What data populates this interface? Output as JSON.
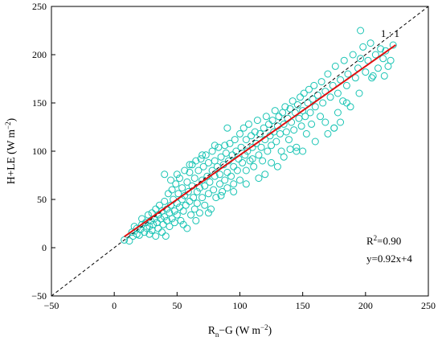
{
  "chart_data": {
    "type": "scatter",
    "title": "",
    "xlabel": {
      "base": "R",
      "sub": "n",
      "rest": "−G (W m",
      "sup": "−2",
      "close": ")"
    },
    "ylabel": {
      "main": "H+LE (W m",
      "sup": "−2",
      "close": ")"
    },
    "xlim": [
      -50,
      250
    ],
    "ylim": [
      -50,
      250
    ],
    "xticks": [
      -50,
      0,
      50,
      100,
      150,
      200,
      250
    ],
    "yticks": [
      -50,
      0,
      50,
      100,
      150,
      200,
      250
    ],
    "grid": false,
    "marker_color": "#19c4b4",
    "one_to_one": {
      "label": "1 : 1",
      "color": "#000000"
    },
    "fit_line": {
      "slope": 0.92,
      "intercept": 4,
      "x_range": [
        8,
        224
      ],
      "color": "#e01010"
    },
    "annotations": {
      "r2_base": "R",
      "r2_sup": "2",
      "r2_value": "=0.90",
      "equation": "y=0.92x+4"
    },
    "series": [
      {
        "marker": "open-circle",
        "points": [
          [
            8,
            8
          ],
          [
            12,
            7
          ],
          [
            14,
            16
          ],
          [
            15,
            12
          ],
          [
            16,
            22
          ],
          [
            18,
            14
          ],
          [
            18,
            20
          ],
          [
            20,
            13
          ],
          [
            21,
            19
          ],
          [
            22,
            24
          ],
          [
            22,
            30
          ],
          [
            24,
            16
          ],
          [
            25,
            26
          ],
          [
            26,
            20
          ],
          [
            27,
            34
          ],
          [
            28,
            22
          ],
          [
            28,
            14
          ],
          [
            29,
            28
          ],
          [
            30,
            36
          ],
          [
            30,
            18
          ],
          [
            31,
            24
          ],
          [
            32,
            30
          ],
          [
            33,
            40
          ],
          [
            33,
            12
          ],
          [
            34,
            26
          ],
          [
            35,
            34
          ],
          [
            35,
            20
          ],
          [
            36,
            44
          ],
          [
            37,
            30
          ],
          [
            38,
            16
          ],
          [
            38,
            38
          ],
          [
            39,
            24
          ],
          [
            40,
            48
          ],
          [
            40,
            32
          ],
          [
            41,
            12
          ],
          [
            42,
            40
          ],
          [
            42,
            28
          ],
          [
            43,
            56
          ],
          [
            44,
            36
          ],
          [
            44,
            22
          ],
          [
            45,
            44
          ],
          [
            46,
            30
          ],
          [
            46,
            60
          ],
          [
            47,
            50
          ],
          [
            48,
            38
          ],
          [
            48,
            26
          ],
          [
            49,
            66
          ],
          [
            50,
            46
          ],
          [
            50,
            34
          ],
          [
            51,
            56
          ],
          [
            52,
            42
          ],
          [
            52,
            72
          ],
          [
            53,
            28
          ],
          [
            54,
            50
          ],
          [
            54,
            62
          ],
          [
            55,
            38
          ],
          [
            56,
            80
          ],
          [
            56,
            54
          ],
          [
            57,
            44
          ],
          [
            58,
            68
          ],
          [
            58,
            20
          ],
          [
            59,
            58
          ],
          [
            60,
            48
          ],
          [
            60,
            78
          ],
          [
            61,
            34
          ],
          [
            62,
            64
          ],
          [
            62,
            86
          ],
          [
            63,
            52
          ],
          [
            64,
            40
          ],
          [
            64,
            72
          ],
          [
            65,
            90
          ],
          [
            66,
            58
          ],
          [
            66,
            46
          ],
          [
            67,
            80
          ],
          [
            68,
            62
          ],
          [
            68,
            36
          ],
          [
            69,
            92
          ],
          [
            70,
            70
          ],
          [
            70,
            52
          ],
          [
            71,
            84
          ],
          [
            72,
            64
          ],
          [
            72,
            44
          ],
          [
            73,
            96
          ],
          [
            74,
            74
          ],
          [
            75,
            56
          ],
          [
            75,
            88
          ],
          [
            76,
            68
          ],
          [
            77,
            40
          ],
          [
            78,
            80
          ],
          [
            78,
            100
          ],
          [
            79,
            60
          ],
          [
            80,
            74
          ],
          [
            80,
            90
          ],
          [
            81,
            52
          ],
          [
            82,
            84
          ],
          [
            83,
            104
          ],
          [
            84,
            66
          ],
          [
            84,
            76
          ],
          [
            85,
            94
          ],
          [
            86,
            58
          ],
          [
            87,
            86
          ],
          [
            88,
            70
          ],
          [
            88,
            106
          ],
          [
            89,
            98
          ],
          [
            90,
            78
          ],
          [
            90,
            62
          ],
          [
            91,
            90
          ],
          [
            92,
            108
          ],
          [
            93,
            74
          ],
          [
            94,
            96
          ],
          [
            95,
            84
          ],
          [
            95,
            66
          ],
          [
            96,
            112
          ],
          [
            97,
            100
          ],
          [
            98,
            80
          ],
          [
            99,
            92
          ],
          [
            100,
            118
          ],
          [
            100,
            70
          ],
          [
            101,
            104
          ],
          [
            102,
            88
          ],
          [
            103,
            124
          ],
          [
            104,
            96
          ],
          [
            105,
            80
          ],
          [
            105,
            112
          ],
          [
            106,
            100
          ],
          [
            107,
            128
          ],
          [
            108,
            90
          ],
          [
            109,
            116
          ],
          [
            110,
            104
          ],
          [
            111,
            84
          ],
          [
            112,
            120
          ],
          [
            113,
            108
          ],
          [
            114,
            132
          ],
          [
            115,
            96
          ],
          [
            116,
            118
          ],
          [
            117,
            104
          ],
          [
            118,
            90
          ],
          [
            119,
            124
          ],
          [
            120,
            112
          ],
          [
            121,
            136
          ],
          [
            122,
            100
          ],
          [
            123,
            128
          ],
          [
            124,
            116
          ],
          [
            125,
            106
          ],
          [
            126,
            132
          ],
          [
            127,
            120
          ],
          [
            128,
            142
          ],
          [
            129,
            110
          ],
          [
            130,
            126
          ],
          [
            131,
            136
          ],
          [
            132,
            118
          ],
          [
            133,
            100
          ],
          [
            134,
            140
          ],
          [
            135,
            128
          ],
          [
            136,
            146
          ],
          [
            137,
            120
          ],
          [
            138,
            134
          ],
          [
            139,
            112
          ],
          [
            140,
            144
          ],
          [
            141,
            130
          ],
          [
            142,
            152
          ],
          [
            143,
            122
          ],
          [
            144,
            140
          ],
          [
            145,
            104
          ],
          [
            146,
            148
          ],
          [
            147,
            134
          ],
          [
            148,
            156
          ],
          [
            149,
            126
          ],
          [
            150,
            142
          ],
          [
            151,
            160
          ],
          [
            152,
            136
          ],
          [
            153,
            118
          ],
          [
            154,
            150
          ],
          [
            155,
            164
          ],
          [
            156,
            140
          ],
          [
            157,
            128
          ],
          [
            158,
            154
          ],
          [
            159,
            168
          ],
          [
            160,
            146
          ],
          [
            162,
            158
          ],
          [
            164,
            136
          ],
          [
            165,
            172
          ],
          [
            166,
            150
          ],
          [
            168,
            162
          ],
          [
            170,
            180
          ],
          [
            172,
            156
          ],
          [
            174,
            168
          ],
          [
            175,
            124
          ],
          [
            176,
            188
          ],
          [
            178,
            160
          ],
          [
            180,
            174
          ],
          [
            182,
            152
          ],
          [
            183,
            194
          ],
          [
            185,
            168
          ],
          [
            186,
            180
          ],
          [
            188,
            146
          ],
          [
            190,
            200
          ],
          [
            192,
            176
          ],
          [
            194,
            186
          ],
          [
            196,
            196
          ],
          [
            198,
            208
          ],
          [
            200,
            182
          ],
          [
            202,
            194
          ],
          [
            204,
            212
          ],
          [
            206,
            178
          ],
          [
            208,
            200
          ],
          [
            210,
            186
          ],
          [
            212,
            206
          ],
          [
            214,
            196
          ],
          [
            216,
            204
          ],
          [
            218,
            188
          ],
          [
            220,
            194
          ],
          [
            222,
            210
          ],
          [
            196,
            225
          ],
          [
            140,
            102
          ],
          [
            150,
            100
          ],
          [
            160,
            110
          ],
          [
            170,
            118
          ],
          [
            180,
            130
          ],
          [
            120,
            76
          ],
          [
            130,
            84
          ],
          [
            110,
            92
          ],
          [
            90,
            124
          ],
          [
            80,
            106
          ],
          [
            70,
            96
          ],
          [
            60,
            86
          ],
          [
            50,
            76
          ],
          [
            45,
            70
          ],
          [
            40,
            76
          ],
          [
            55,
            24
          ],
          [
            65,
            28
          ],
          [
            75,
            36
          ],
          [
            85,
            54
          ],
          [
            95,
            58
          ],
          [
            105,
            66
          ],
          [
            115,
            72
          ],
          [
            125,
            88
          ],
          [
            135,
            94
          ],
          [
            145,
            100
          ],
          [
            175,
            124
          ],
          [
            185,
            150
          ],
          [
            195,
            160
          ],
          [
            205,
            176
          ],
          [
            215,
            178
          ],
          [
            178,
            140
          ],
          [
            168,
            130
          ]
        ]
      }
    ]
  }
}
